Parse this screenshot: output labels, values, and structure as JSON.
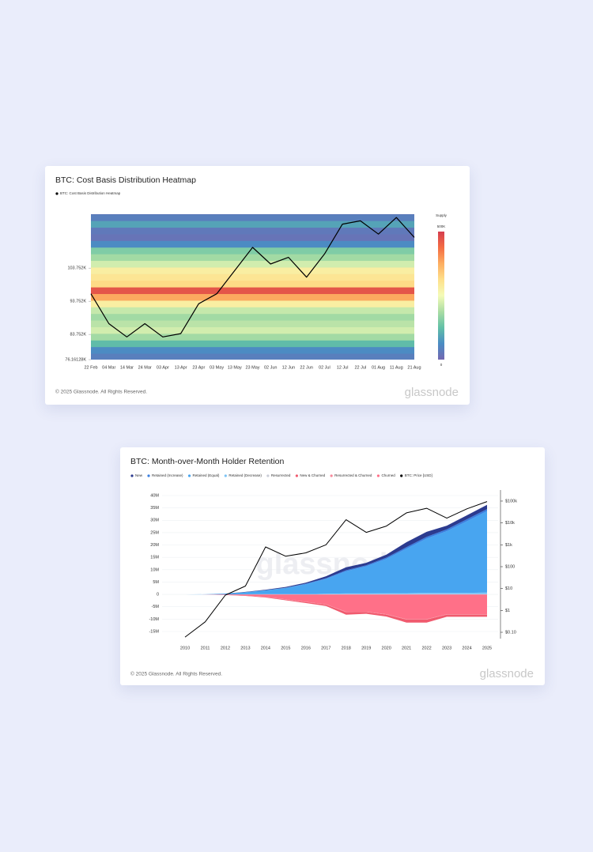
{
  "cards": [
    {
      "copyright": "© 2025 Glassnode. All Rights Reserved.",
      "logo": "glassnode"
    },
    {
      "copyright": "© 2025 Glassnode. All Rights Reserved.",
      "logo": "glassnode",
      "watermark": "glassnode"
    }
  ],
  "chart_data": [
    {
      "type": "heatmap",
      "title": "BTC: Cost Basis Distribution Heatmap",
      "categories": [
        "22 Feb",
        "04 Mar",
        "14 Mar",
        "24 Mar",
        "03 Apr",
        "13 Apr",
        "23 Apr",
        "03 May",
        "13 May",
        "23 May",
        "02 Jun",
        "12 Jun",
        "22 Jun",
        "02 Jul",
        "12 Jul",
        "22 Jul",
        "01 Aug",
        "11 Aug",
        "21 Aug"
      ],
      "series": [
        {
          "name": "BTC: Cost Basis Distribution Heatmap",
          "color": "#000000",
          "values": [
            96000,
            87000,
            83000,
            87000,
            83000,
            84000,
            93000,
            96000,
            103000,
            110000,
            105000,
            107000,
            101000,
            108000,
            117000,
            118000,
            114000,
            119000,
            113000
          ]
        }
      ],
      "ylim": [
        76161.28,
        120000
      ],
      "yticks": [
        {
          "value": 103752,
          "label": "103.752K"
        },
        {
          "value": 93752,
          "label": "93.752K"
        },
        {
          "value": 83752,
          "label": "83.752K"
        },
        {
          "value": 76161.28,
          "label": "76.16128K"
        }
      ],
      "heatmap": {
        "bins": [
          76000,
          78000,
          80000,
          82000,
          84000,
          86000,
          88000,
          90000,
          92000,
          94000,
          96000,
          98000,
          100000,
          102000,
          104000,
          106000,
          108000,
          110000,
          112000,
          114000,
          116000,
          118000,
          120000,
          122000
        ],
        "values": [
          40000,
          60000,
          120000,
          180000,
          220000,
          200000,
          180000,
          210000,
          280000,
          380000,
          470000,
          320000,
          300000,
          280000,
          220000,
          180000,
          150000,
          60000,
          20000,
          30000,
          90000,
          40000,
          10000
        ]
      },
      "colorbar": {
        "title": "Supply",
        "zlim": [
          0,
          500000
        ],
        "ticks": [
          {
            "value": 500000,
            "label": "500K"
          },
          0
        ]
      },
      "colorscale": [
        "#7468b1",
        "#4a8cc4",
        "#62c0a7",
        "#abdda4",
        "#f4fbb8",
        "#fee08b",
        "#fdae61",
        "#f46d43",
        "#d53e4f"
      ]
    },
    {
      "type": "stacked_area",
      "title": "BTC: Month-over-Month Holder Retention",
      "x": [
        2010,
        2011,
        2012,
        2013,
        2014,
        2015,
        2016,
        2017,
        2018,
        2019,
        2020,
        2021,
        2022,
        2023,
        2024,
        2025
      ],
      "xlim": [
        2008.86,
        2025.55
      ],
      "xticks": [
        2010,
        2011,
        2012,
        2013,
        2014,
        2015,
        2016,
        2017,
        2018,
        2019,
        2020,
        2021,
        2022,
        2023,
        2024,
        2025
      ],
      "ylim": [
        -17880000,
        42240000
      ],
      "yticks": [
        {
          "value": 40000000,
          "label": "40M"
        },
        {
          "value": 35000000,
          "label": "35M"
        },
        {
          "value": 30000000,
          "label": "30M"
        },
        {
          "value": 25000000,
          "label": "25M"
        },
        {
          "value": 20000000,
          "label": "20M"
        },
        {
          "value": 15000000,
          "label": "15M"
        },
        {
          "value": 10000000,
          "label": "10M"
        },
        {
          "value": 5000000,
          "label": "5M"
        },
        0,
        {
          "value": -5000000,
          "label": "-5M"
        },
        {
          "value": -10000000,
          "label": "-10M"
        },
        {
          "value": -15000000,
          "label": "-15M"
        }
      ],
      "y2lim": [
        0.0514,
        320000
      ],
      "y2log": true,
      "y2ticks": [
        {
          "value": 100000,
          "label": "$100k"
        },
        {
          "value": 10000,
          "label": "$10k"
        },
        {
          "value": 1000,
          "label": "$1k"
        },
        {
          "value": 100,
          "label": "$100"
        },
        {
          "value": 10,
          "label": "$10"
        },
        {
          "value": 1,
          "label": "$1"
        },
        {
          "value": 0.1,
          "label": "$0.10"
        }
      ],
      "grid": true,
      "series": [
        {
          "name": "New",
          "color": "#2c3b8f",
          "values": [
            0,
            20000,
            50000,
            100000,
            200000,
            300000,
            400000,
            800000,
            1200000,
            1000000,
            1200000,
            2000000,
            2000000,
            1500000,
            1600000,
            1700000
          ]
        },
        {
          "name": "Retained (Increase)",
          "color": "#3a7fe0",
          "values": [
            0,
            0,
            0,
            50000,
            100000,
            100000,
            200000,
            300000,
            400000,
            400000,
            500000,
            600000,
            700000,
            700000,
            800000,
            800000
          ]
        },
        {
          "name": "Retained (Equal)",
          "color": "#48a5f0",
          "values": [
            0,
            50000,
            300000,
            800000,
            1500000,
            2500000,
            4000000,
            6000000,
            9000000,
            11000000,
            14000000,
            18000000,
            22000000,
            25000000,
            29000000,
            33000000
          ]
        },
        {
          "name": "Retained (Decrease)",
          "color": "#7cc3f5",
          "values": [
            0,
            0,
            0,
            50000,
            100000,
            100000,
            100000,
            200000,
            300000,
            300000,
            300000,
            400000,
            500000,
            500000,
            500000,
            600000
          ]
        },
        {
          "name": "Resurrected",
          "color": "#c9ccd6",
          "values": [
            0,
            0,
            0,
            10000,
            20000,
            30000,
            40000,
            50000,
            80000,
            80000,
            100000,
            120000,
            120000,
            120000,
            120000,
            120000
          ]
        },
        {
          "name": "New & Churned",
          "color": "#f05a6e",
          "values": [
            0,
            0,
            -50000,
            -100000,
            -200000,
            -300000,
            -400000,
            -600000,
            -1000000,
            -700000,
            -800000,
            -1200000,
            -1200000,
            -900000,
            -900000,
            -900000
          ]
        },
        {
          "name": "Resurrected & Churned",
          "color": "#f7889a",
          "values": [
            0,
            0,
            0,
            -20000,
            -50000,
            -80000,
            -100000,
            -120000,
            -200000,
            -150000,
            -150000,
            -200000,
            -200000,
            -150000,
            -150000,
            -150000
          ]
        },
        {
          "name": "Churned",
          "color": "#ff7088",
          "values": [
            0,
            -50000,
            -200000,
            -500000,
            -1000000,
            -2000000,
            -3000000,
            -4000000,
            -7000000,
            -7000000,
            -8000000,
            -10000000,
            -10000000,
            -8000000,
            -8000000,
            -8000000
          ]
        },
        {
          "name": "BTC: Price [USD]",
          "color": "#000000",
          "axis": "y2",
          "values": [
            0.06,
            0.3,
            5,
            13,
            800,
            300,
            430,
            1000,
            14000,
            3700,
            7200,
            29000,
            47000,
            16500,
            44000,
            95000
          ]
        }
      ]
    }
  ]
}
